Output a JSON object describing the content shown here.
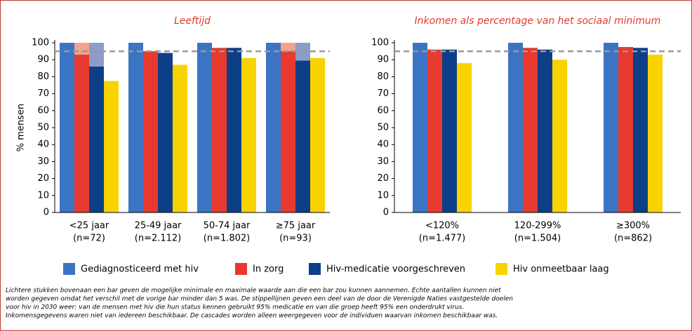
{
  "chart_data": [
    {
      "type": "bar",
      "title": "Leeftijd",
      "ylabel": "% mensen",
      "categories": [
        [
          "<25 jaar",
          "(n=72)"
        ],
        [
          "25-49 jaar",
          "(n=2.112)"
        ],
        [
          "50-74 jaar",
          "(n=1.802)"
        ],
        [
          "≥75 jaar",
          "(n=93)"
        ]
      ],
      "series": [
        {
          "name": "Gediagnosticeerd met hiv",
          "color": "#3b74c3",
          "values": [
            100,
            100,
            100,
            100
          ]
        },
        {
          "name": "In zorg",
          "color": "#e8392e",
          "light_color": "#f4a18d",
          "values": [
            93,
            95,
            97,
            95
          ],
          "max_values": [
            100,
            null,
            null,
            100
          ]
        },
        {
          "name": "Hiv-medicatie voorgeschreven",
          "color": "#0c3f87",
          "light_color": "#8d9cc9",
          "values": [
            86,
            94,
            97,
            89.5
          ],
          "max_values": [
            100,
            null,
            null,
            100
          ]
        },
        {
          "name": "Hiv onmeetbaar laag",
          "color": "#f8d300",
          "values": [
            77.5,
            87,
            91,
            91
          ]
        }
      ],
      "reference": 95,
      "ylim": [
        0,
        100
      ],
      "yticks": [
        0,
        10,
        20,
        30,
        40,
        50,
        60,
        70,
        80,
        90,
        100
      ]
    },
    {
      "type": "bar",
      "title": "Inkomen als percentage van het sociaal minimum",
      "categories": [
        [
          "<120%",
          "(n=1.477)"
        ],
        [
          "120-299%",
          "(n=1.504)"
        ],
        [
          "≥300%",
          "(n=862)"
        ]
      ],
      "series": [
        {
          "name": "Gediagnosticeerd met hiv",
          "color": "#3b74c3",
          "values": [
            100,
            100,
            100
          ]
        },
        {
          "name": "In zorg",
          "color": "#e8392e",
          "values": [
            96,
            97,
            97.5
          ]
        },
        {
          "name": "Hiv-medicatie voorgeschreven",
          "color": "#0c3f87",
          "values": [
            96,
            96,
            97
          ]
        },
        {
          "name": "Hiv onmeetbaar laag",
          "color": "#f8d300",
          "values": [
            88,
            90,
            93
          ]
        }
      ],
      "reference": 95,
      "ylim": [
        0,
        100
      ],
      "yticks": [
        0,
        10,
        20,
        30,
        40,
        50,
        60,
        70,
        80,
        90,
        100
      ]
    }
  ],
  "footnote": [
    "Lichtere stukken bovenaan een bar geven de mogelijke minimale en maximale waarde aan die een bar zou kunnen aannemen. Echte aantallen kunnen niet",
    "worden gegeven omdat het verschil met de vorige bar minder dan 5 was. De stippellijnen geven een deel van de door de Verenigde Naties vastgestelde doelen",
    "voor hiv in 2030 weer: van de mensen met hiv die hun status kennen gebruikt 95% medicatie en van die groep heeft 95% een onderdrukt virus.",
    "Inkomensgegevens waren niet van iedereen beschikbaar. De cascades worden alleen weergegeven voor de individuen waarvan inkomen beschikbaar was."
  ]
}
